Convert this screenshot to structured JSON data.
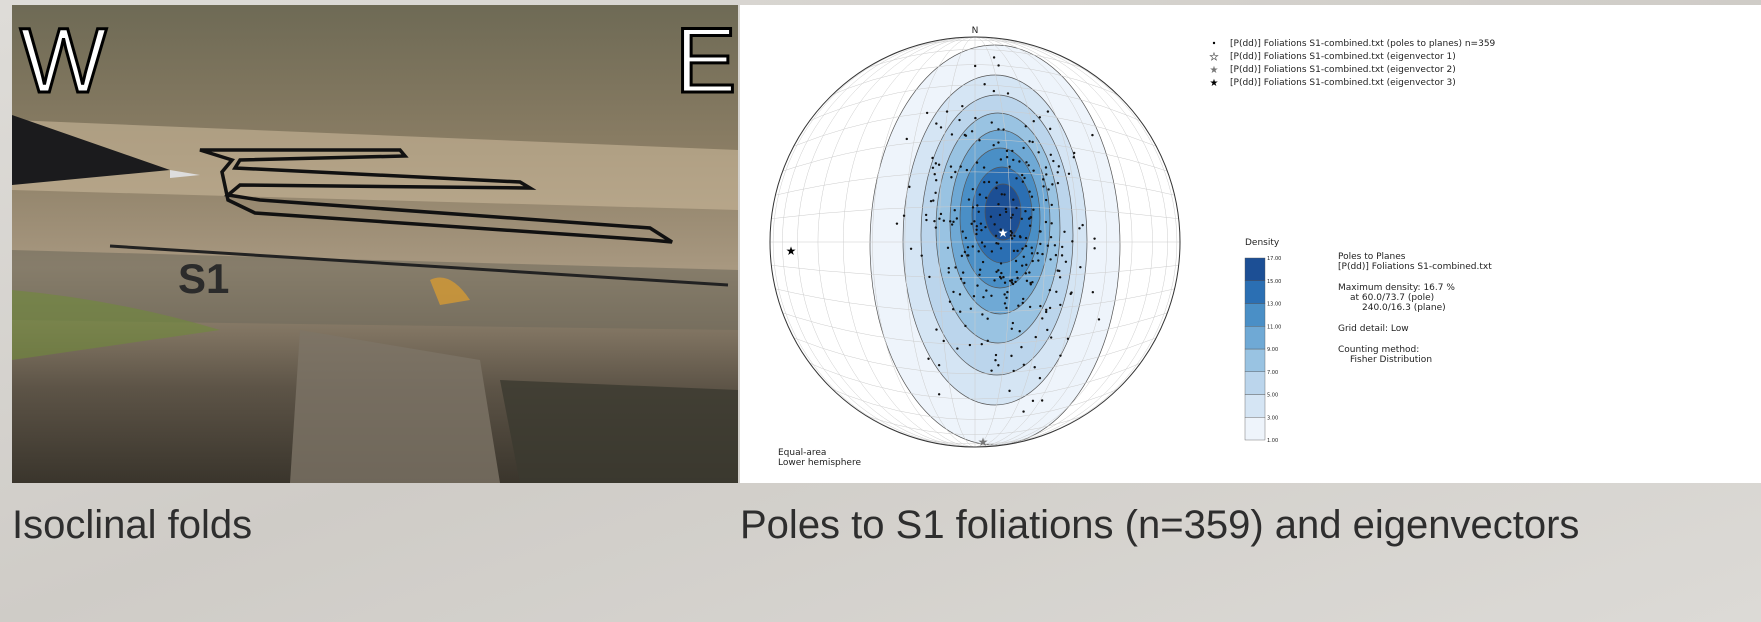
{
  "photo": {
    "left_label": "W",
    "right_label": "E",
    "structure_label": "S1",
    "caption": "Isoclinal folds"
  },
  "stereonet": {
    "north_label": "N",
    "legend": [
      "[P(dd)] Foliations S1-combined.txt (poles to planes) n=359",
      "[P(dd)] Foliations S1-combined.txt (eigenvector 1)",
      "[P(dd)] Foliations S1-combined.txt (eigenvector 2)",
      "[P(dd)] Foliations S1-combined.txt (eigenvector 3)"
    ],
    "density_title": "Density",
    "colorbar_ticks": [
      "1.00",
      "3.00",
      "5.00",
      "7.00",
      "9.00",
      "11.00",
      "13.00",
      "15.00",
      "17.00"
    ],
    "info": [
      "Poles to Planes",
      "[P(dd)] Foliations S1-combined.txt",
      "Maximum density: 16.7 %",
      "at 60.0/73.7 (pole)",
      "240.0/16.3 (plane)",
      "Grid detail: Low",
      "Counting method:",
      "Fisher Distribution"
    ],
    "projection": [
      "Equal-area",
      "Lower hemisphere"
    ],
    "caption": "Poles to S1 foliations (n=359) and eigenvectors"
  }
}
